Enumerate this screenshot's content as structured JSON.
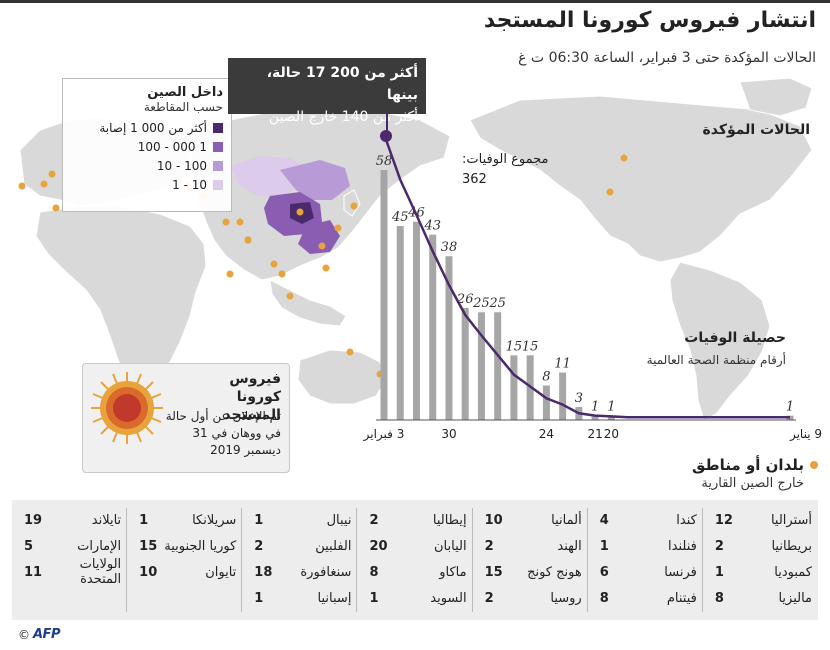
{
  "header": {
    "title": "انتشار فيروس كورونا المستجد",
    "subtitle": "الحالات المؤكدة حتى 3 فبراير، الساعة 06:30 ت غ"
  },
  "callout": {
    "line1": "أكثر من 200 17 حالة، بينها",
    "line2": "أكثر من 140 خارج الصين"
  },
  "legend_china": {
    "title": "داخل الصين",
    "subtitle": "حسب المقاطعة",
    "items": [
      {
        "label": "أكثر من 000 1 إصابة",
        "color": "#4b2a6b"
      },
      {
        "label": "100 - 000 1",
        "color": "#8a5db3"
      },
      {
        "label": "10 - 100",
        "color": "#b89ad6"
      },
      {
        "label": "1 - 10",
        "color": "#dccbea"
      }
    ]
  },
  "labels": {
    "confirmed_cases": "الحالات المؤكدة",
    "total_deaths_label": "مجموع الوفيات:",
    "total_deaths_value": "362",
    "death_toll_title": "حصيلة الوفيات",
    "death_toll_sub": "أرقام منظمة الصحة العالمية"
  },
  "virus_box": {
    "title": "فيروس كورونا المستجد",
    "text": "تم الإعلان عن أول حالة في ووهان في 31 ديسمبر 2019"
  },
  "outside": {
    "title": "بلدان أو مناطق",
    "subtitle": "خارج الصين القارية"
  },
  "colors": {
    "accent": "#4b2a6b",
    "bar": "#a6a6a6",
    "dot": "#e8a33c",
    "land": "#d9d9d9"
  },
  "chart_data": {
    "type": "bar",
    "title": "حصيلة الوفيات",
    "subtitle": "أرقام منظمة الصحة العالمية",
    "x_order": "right-to-left from 9 يناير to 3 فبراير",
    "x_tick_labels": [
      "9 يناير",
      "20",
      "21",
      "24",
      "30",
      "3 فبراير"
    ],
    "days": [
      "9 يناير",
      "10",
      "11",
      "12",
      "13",
      "14",
      "15",
      "16",
      "17",
      "18",
      "19",
      "20",
      "21",
      "22",
      "23",
      "24",
      "25",
      "26",
      "27",
      "28",
      "29",
      "30",
      "31",
      "1",
      "2",
      "3 فبراير"
    ],
    "values": [
      1,
      0,
      0,
      0,
      0,
      0,
      0,
      0,
      0,
      0,
      0,
      1,
      1,
      3,
      11,
      8,
      15,
      15,
      25,
      25,
      26,
      38,
      43,
      46,
      45,
      58
    ],
    "value_labels": [
      1,
      null,
      null,
      null,
      null,
      null,
      null,
      null,
      null,
      null,
      null,
      1,
      1,
      3,
      11,
      8,
      15,
      15,
      25,
      25,
      26,
      38,
      43,
      46,
      45,
      58
    ],
    "cumulative_line": "total deaths over time",
    "total_deaths": 362
  },
  "countries": [
    [
      {
        "name": "أستراليا",
        "count": "12"
      },
      {
        "name": "بريطانيا",
        "count": "2"
      },
      {
        "name": "كمبوديا",
        "count": "1"
      },
      {
        "name": "ماليزيا",
        "count": "8"
      }
    ],
    [
      {
        "name": "كندا",
        "count": "4"
      },
      {
        "name": "فنلندا",
        "count": "1"
      },
      {
        "name": "فرنسا",
        "count": "6"
      },
      {
        "name": "فيتنام",
        "count": "8"
      }
    ],
    [
      {
        "name": "ألمانيا",
        "count": "10"
      },
      {
        "name": "الهند",
        "count": "2"
      },
      {
        "name": "هونج كونج",
        "count": "15"
      },
      {
        "name": "روسيا",
        "count": "2"
      }
    ],
    [
      {
        "name": "إيطاليا",
        "count": "2"
      },
      {
        "name": "اليابان",
        "count": "20"
      },
      {
        "name": "ماكاو",
        "count": "8"
      },
      {
        "name": "السويد",
        "count": "1"
      }
    ],
    [
      {
        "name": "نيبال",
        "count": "1"
      },
      {
        "name": "الفلبين",
        "count": "2"
      },
      {
        "name": "سنغافورة",
        "count": "18"
      },
      {
        "name": "إسبانيا",
        "count": "1"
      }
    ],
    [
      {
        "name": "سريلانكا",
        "count": "1"
      },
      {
        "name": "كوريا الجنوبية",
        "count": "15"
      },
      {
        "name": "تايوان",
        "count": "10"
      }
    ],
    [
      {
        "name": "تايلاند",
        "count": "19"
      },
      {
        "name": "الإمارات",
        "count": "5"
      },
      {
        "name": "الولايات المتحدة",
        "count": "11"
      }
    ]
  ],
  "footer": {
    "copyright": "©",
    "logo": "AFP"
  }
}
